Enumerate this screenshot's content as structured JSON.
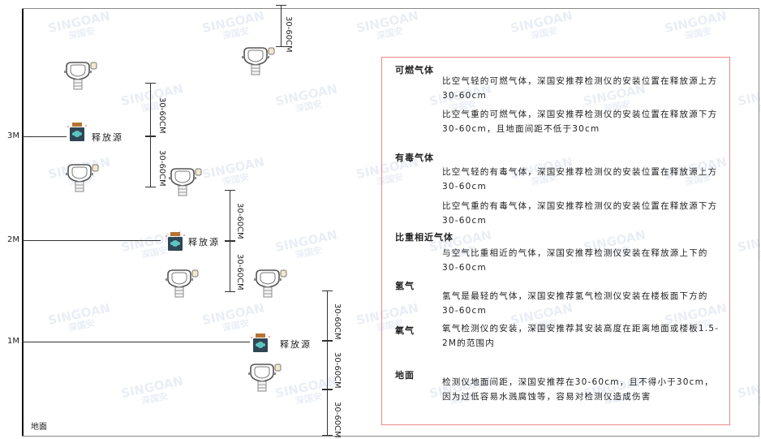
{
  "watermark": {
    "brand": "SINGOAN",
    "cn": "深国安"
  },
  "levels": {
    "l3": "3M",
    "l2": "2M",
    "l1": "1M",
    "ground": "地面"
  },
  "source_label": "释放源",
  "dimension_label": "30-60CM",
  "legend": {
    "combustible": {
      "title": "可燃气体",
      "p1": "比空气轻的可燃气体，深国安推荐检测仪的安装位置在释放源上方30-60cm",
      "p2": "比空气重的可燃气体，深国安推荐检测仪的安装位置在释放源下方30-60cm，且地面间距不低于30cm"
    },
    "toxic": {
      "title": "有毒气体",
      "p1": "比空气轻的有毒气体，深国安推荐检测仪的安装位置在释放源上方30-60cm",
      "p2": "比空气重的有毒气体，深国安推荐检测仪的安装位置在释放源下方30-60cm"
    },
    "similar": {
      "title": "比重相近气体",
      "p1": "与空气比重相近的气体，深国安推荐检测仪安装在释放源上下的30-60cm"
    },
    "hydrogen": {
      "title": "氢气",
      "p1": "氢气是最轻的气体，深国安推荐氢气检测仪安装在楼板面下方的30-60cm"
    },
    "oxygen": {
      "title": "氧气",
      "p1": "氧气检测仪的安装，深国安推荐其安装高度在距离地面或楼板1.5-2M的范围内"
    },
    "ground": {
      "title": "地面",
      "p1": "检测仪地面间距，深国安推荐在30-60cm，且不得小于30cm，因为过低容易水溅腐蚀等，容易对检测仪造成伤害"
    }
  }
}
